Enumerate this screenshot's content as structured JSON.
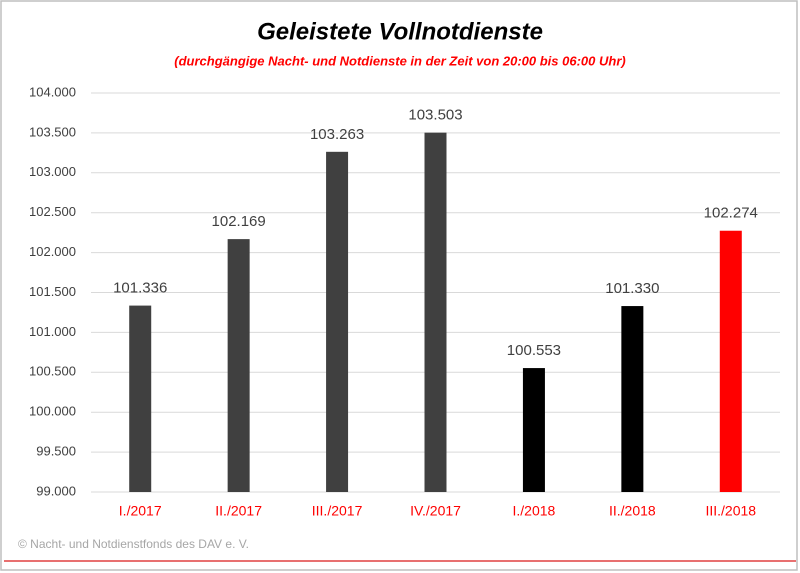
{
  "chart_data": {
    "type": "bar",
    "title": "Geleistete  Vollnotdienste",
    "subtitle": "(durchgängige Nacht- und Notdienste in der Zeit von 20:00 bis 06:00 Uhr)",
    "source": "© Nacht- und Notdienstfonds  des DAV e. V.",
    "categories": [
      "I./2017",
      "II./2017",
      "III./2017",
      "IV./2017",
      "I./2018",
      "II./2018",
      "III./2018"
    ],
    "values": [
      101336,
      102169,
      103263,
      103503,
      100553,
      101330,
      102274
    ],
    "value_labels": [
      "101.336",
      "102.169",
      "103.263",
      "103.503",
      "100.553",
      "101.330",
      "102.274"
    ],
    "colors": [
      "#404040",
      "#404040",
      "#404040",
      "#404040",
      "#000000",
      "#000000",
      "#ff0000"
    ],
    "category_label_color": "#ff0000",
    "ylim": [
      99000,
      104000
    ],
    "yticks": [
      {
        "value": 99000,
        "label": "99.000"
      },
      {
        "value": 99500,
        "label": "99.500"
      },
      {
        "value": 100000,
        "label": "100.000"
      },
      {
        "value": 100500,
        "label": "100.500"
      },
      {
        "value": 101000,
        "label": "101.000"
      },
      {
        "value": 101500,
        "label": "101.500"
      },
      {
        "value": 102000,
        "label": "102.000"
      },
      {
        "value": 102500,
        "label": "102.500"
      },
      {
        "value": 103000,
        "label": "103.000"
      },
      {
        "value": 103500,
        "label": "103.500"
      },
      {
        "value": 104000,
        "label": "104.000"
      }
    ],
    "grid": true
  }
}
